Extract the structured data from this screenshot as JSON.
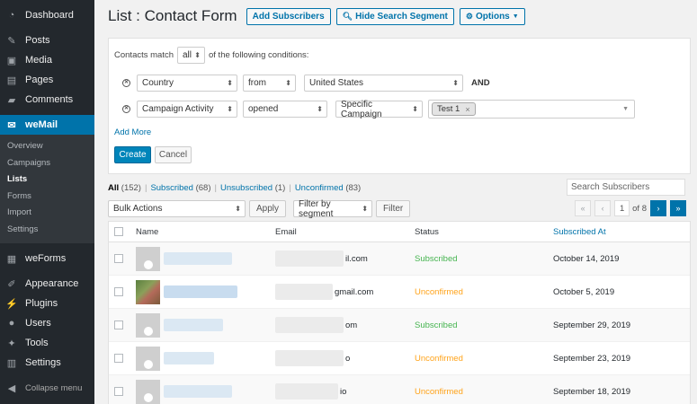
{
  "sidebar": {
    "top": [
      {
        "label": "Dashboard",
        "icon": "dashboard-icon"
      },
      {
        "label": "Posts",
        "icon": "pin-icon"
      },
      {
        "label": "Media",
        "icon": "media-icon"
      },
      {
        "label": "Pages",
        "icon": "pages-icon"
      },
      {
        "label": "Comments",
        "icon": "comments-icon"
      }
    ],
    "active": {
      "label": "weMail",
      "icon": "mail-icon"
    },
    "submenu": [
      "Overview",
      "Campaigns",
      "Lists",
      "Forms",
      "Import",
      "Settings"
    ],
    "submenu_current": "Lists",
    "bottom": [
      {
        "label": "weForms",
        "icon": "weforms-icon"
      },
      {
        "label": "Appearance",
        "icon": "brush-icon"
      },
      {
        "label": "Plugins",
        "icon": "plugin-icon"
      },
      {
        "label": "Users",
        "icon": "users-icon"
      },
      {
        "label": "Tools",
        "icon": "wrench-icon"
      },
      {
        "label": "Settings",
        "icon": "settings-icon"
      }
    ],
    "collapse_label": "Collapse menu"
  },
  "header": {
    "title": "List : Contact Form",
    "add_subscribers": "Add Subscribers",
    "hide_search": "Hide Search Segment",
    "options": "Options"
  },
  "segment": {
    "match_prefix": "Contacts match",
    "match_value": "all",
    "match_suffix": "of the following conditions:",
    "conditions": [
      {
        "field": "Country",
        "operator": "from",
        "value": "United States",
        "joiner": "AND"
      },
      {
        "field": "Campaign Activity",
        "operator": "opened",
        "value": "Specific Campaign",
        "tag": "Test 1"
      }
    ],
    "add_more": "Add More",
    "create": "Create",
    "cancel": "Cancel"
  },
  "filters": {
    "all": {
      "label": "All",
      "count": "(152)"
    },
    "subscribed": {
      "label": "Subscribed",
      "count": "(68)"
    },
    "unsubscribed": {
      "label": "Unsubscribed",
      "count": "(1)"
    },
    "unconfirmed": {
      "label": "Unconfirmed",
      "count": "(83)"
    },
    "search_placeholder": "Search Subscribers"
  },
  "actions": {
    "bulk": "Bulk Actions",
    "apply": "Apply",
    "segment": "Filter by segment",
    "filter": "Filter"
  },
  "pagination": {
    "first": "«",
    "prev": "‹",
    "current": "1",
    "of": "of 8",
    "next": "›",
    "last": "»"
  },
  "table": {
    "columns": {
      "name": "Name",
      "email": "Email",
      "status": "Status",
      "subscribed_at": "Subscribed At"
    },
    "rows": [
      {
        "email_tail": "il.com",
        "status": "Subscribed",
        "date": "October 14, 2019"
      },
      {
        "email_tail": "gmail.com",
        "status": "Unconfirmed",
        "date": "October 5, 2019"
      },
      {
        "email_tail": "om",
        "status": "Subscribed",
        "date": "September 29, 2019"
      },
      {
        "email_tail": "o",
        "status": "Unconfirmed",
        "date": "September 23, 2019"
      },
      {
        "email_tail": "io",
        "status": "Unconfirmed",
        "date": "September 18, 2019"
      }
    ]
  },
  "colors": {
    "accent": "#0073aa",
    "sidebar": "#23282d",
    "subscribed": "#46b450",
    "unconfirmed": "#ffa31a"
  }
}
